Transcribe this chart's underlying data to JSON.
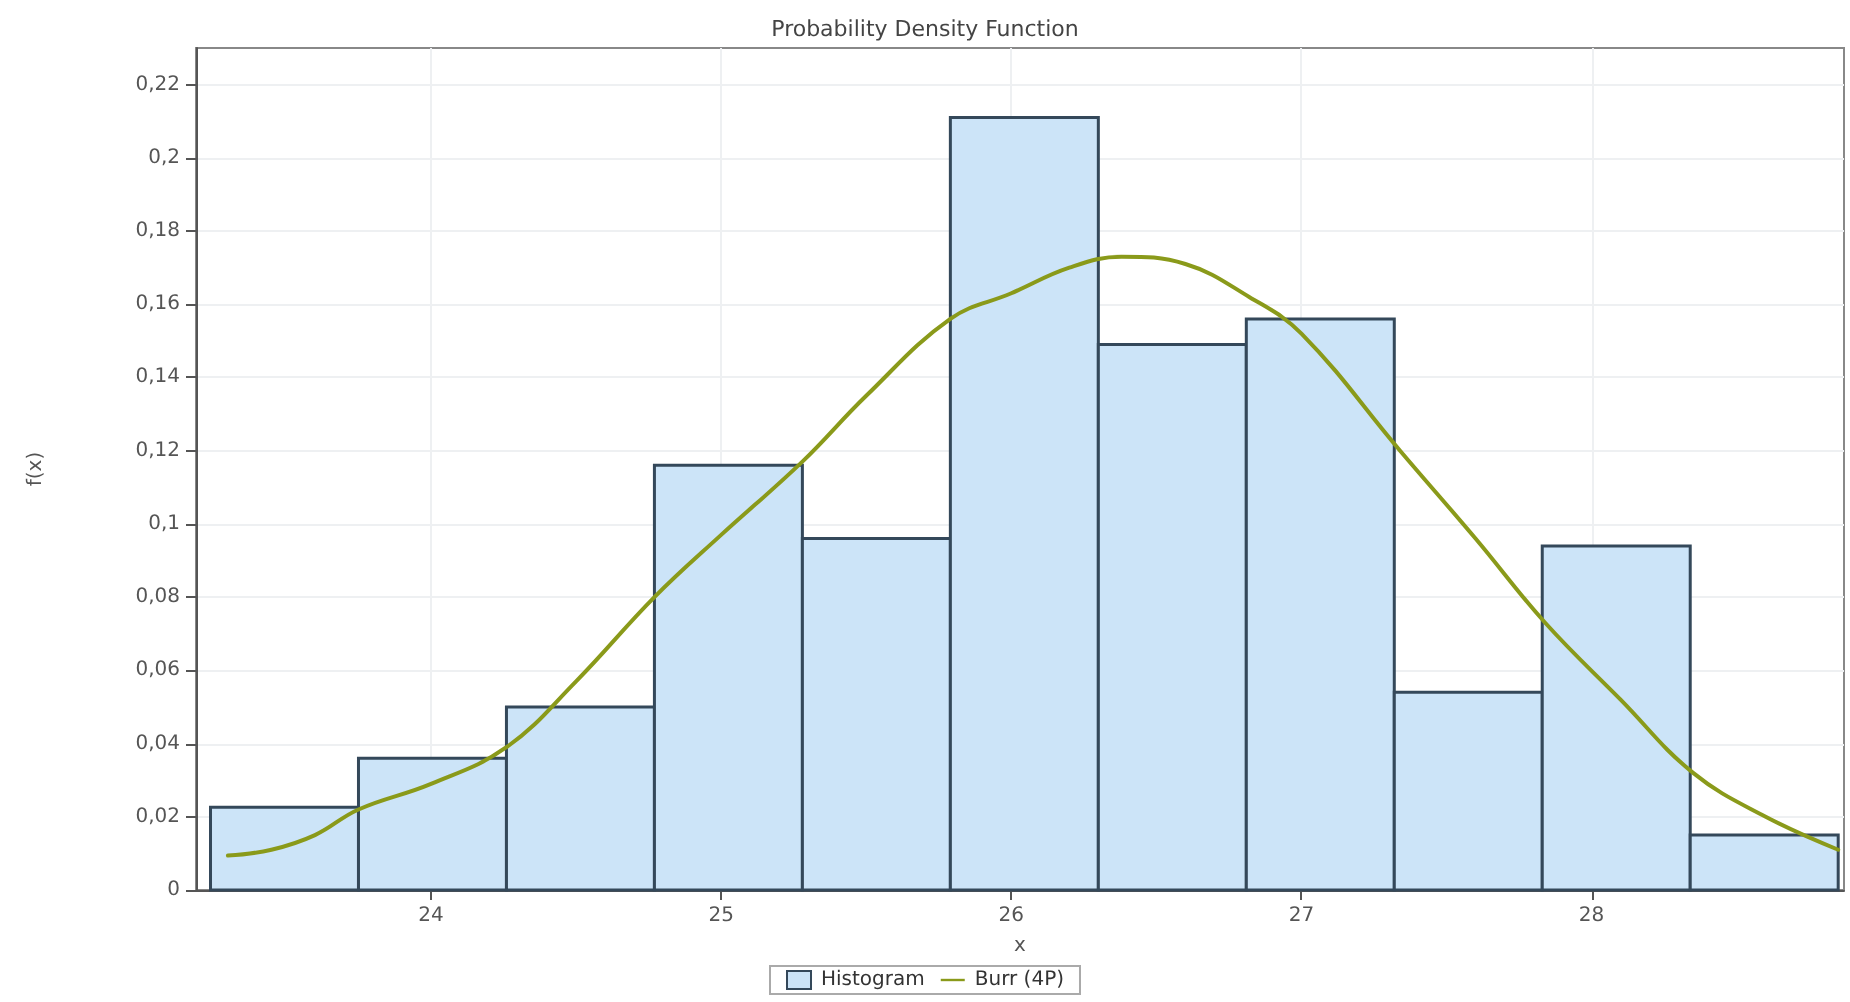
{
  "chart_data": {
    "type": "histogram",
    "title": "Probability Density Function",
    "xlabel": "x",
    "ylabel": "f(x)",
    "series": [
      {
        "name": "Histogram",
        "color": "#cce4f8",
        "bins": [
          23.24,
          23.75,
          24.26,
          24.77,
          25.28,
          25.79,
          26.3,
          26.81,
          27.32,
          27.83,
          28.34,
          28.85
        ],
        "values": [
          0.0226,
          0.036,
          0.05,
          0.116,
          0.096,
          0.211,
          0.149,
          0.156,
          0.054,
          0.094,
          0.015
        ]
      },
      {
        "type": "line",
        "name": "Burr (4P)",
        "color": "#8a9a1a",
        "x": [
          23.3,
          23.45,
          23.6,
          23.75,
          24.0,
          24.26,
          24.5,
          24.77,
          25.0,
          25.28,
          25.5,
          25.79,
          26.0,
          26.2,
          26.38,
          26.6,
          26.82,
          27.0,
          27.34,
          27.6,
          27.84,
          28.1,
          28.35,
          28.6,
          28.85
        ],
        "values": [
          0.0094,
          0.011,
          0.015,
          0.022,
          0.029,
          0.039,
          0.057,
          0.08,
          0.097,
          0.117,
          0.135,
          0.156,
          0.163,
          0.17,
          0.173,
          0.171,
          0.162,
          0.152,
          0.12,
          0.096,
          0.073,
          0.052,
          0.032,
          0.02,
          0.011
        ]
      }
    ],
    "xlim": [
      23.19,
      28.87
    ],
    "xticks": [
      24,
      25,
      26,
      27,
      28
    ],
    "ylim": [
      0,
      0.23
    ],
    "yticks": [
      0,
      {
        "value": 0.02,
        "label": "0,02"
      },
      {
        "value": 0.04,
        "label": "0,04"
      },
      {
        "value": 0.06,
        "label": "0,06"
      },
      {
        "value": 0.08,
        "label": "0,08"
      },
      {
        "value": 0.1,
        "label": "0,1"
      },
      {
        "value": 0.12,
        "label": "0,12"
      },
      {
        "value": 0.14,
        "label": "0,14"
      },
      {
        "value": 0.16,
        "label": "0,16"
      },
      {
        "value": 0.18,
        "label": "0,18"
      },
      {
        "value": 0.2,
        "label": "0,2"
      },
      {
        "value": 0.22,
        "label": "0,22"
      }
    ],
    "grid": true,
    "legend": "bottom",
    "marker": "none",
    "line_style": "solid"
  }
}
